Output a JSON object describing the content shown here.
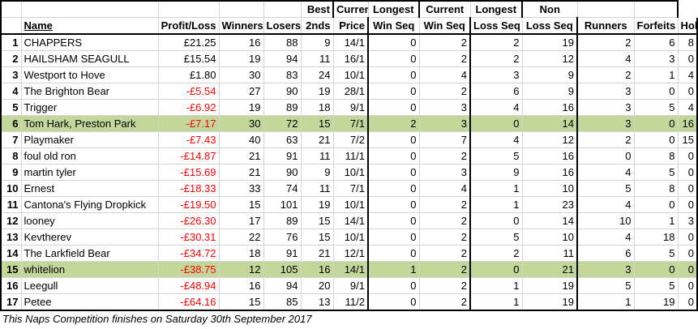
{
  "headers": {
    "line1": {
      "best": "Best",
      "cur_win": "Current",
      "long_win": "Longest",
      "cur_loss": "Current",
      "long_loss": "Longest",
      "non": "Non"
    },
    "line2": {
      "name": "Name",
      "profit": "Profit/Loss",
      "winners": "Winners",
      "losers": "Losers",
      "seconds": "2nds",
      "best": "Price",
      "cur_win": "Win Seq",
      "long_win": "Win Seq",
      "cur_loss": "Loss Seq",
      "long_loss": "Loss Seq",
      "non": "Runners",
      "forfeits": "Forfeits",
      "holiday": "Holiday"
    }
  },
  "rows": [
    {
      "rank": "1",
      "name": "CHAPPERS",
      "profit": "£21.25",
      "winners": "16",
      "losers": "88",
      "seconds": "9",
      "best": "14/1",
      "cur_win": "0",
      "long_win": "2",
      "cur_loss": "2",
      "long_loss": "19",
      "non": "2",
      "forfeits": "6",
      "holiday": "8"
    },
    {
      "rank": "2",
      "name": "HAILSHAM SEAGULL",
      "profit": "£15.54",
      "winners": "19",
      "losers": "94",
      "seconds": "11",
      "best": "16/1",
      "cur_win": "0",
      "long_win": "2",
      "cur_loss": "2",
      "long_loss": "12",
      "non": "4",
      "forfeits": "3",
      "holiday": "0"
    },
    {
      "rank": "3",
      "name": "Westport to Hove",
      "profit": "£1.80",
      "winners": "30",
      "losers": "83",
      "seconds": "24",
      "best": "10/1",
      "cur_win": "0",
      "long_win": "4",
      "cur_loss": "3",
      "long_loss": "9",
      "non": "2",
      "forfeits": "1",
      "holiday": "4"
    },
    {
      "rank": "4",
      "name": "The Brighton Bear",
      "profit": "-£5.54",
      "winners": "27",
      "losers": "90",
      "seconds": "19",
      "best": "28/1",
      "cur_win": "0",
      "long_win": "2",
      "cur_loss": "6",
      "long_loss": "9",
      "non": "3",
      "forfeits": "0",
      "holiday": "0"
    },
    {
      "rank": "5",
      "name": "Trigger",
      "profit": "-£6.92",
      "winners": "19",
      "losers": "89",
      "seconds": "18",
      "best": "9/1",
      "cur_win": "0",
      "long_win": "3",
      "cur_loss": "4",
      "long_loss": "16",
      "non": "3",
      "forfeits": "5",
      "holiday": "4"
    },
    {
      "rank": "6",
      "name": "Tom Hark, Preston Park",
      "profit": "-£7.17",
      "winners": "30",
      "losers": "72",
      "seconds": "15",
      "best": "7/1",
      "cur_win": "2",
      "long_win": "3",
      "cur_loss": "0",
      "long_loss": "14",
      "non": "3",
      "forfeits": "0",
      "holiday": "16",
      "hl": true
    },
    {
      "rank": "7",
      "name": "Playmaker",
      "profit": "-£7.43",
      "winners": "40",
      "losers": "63",
      "seconds": "21",
      "best": "7/2",
      "cur_win": "0",
      "long_win": "7",
      "cur_loss": "4",
      "long_loss": "12",
      "non": "2",
      "forfeits": "0",
      "holiday": "15"
    },
    {
      "rank": "8",
      "name": "foul old ron",
      "profit": "-£14.87",
      "winners": "21",
      "losers": "91",
      "seconds": "11",
      "best": "11/1",
      "cur_win": "0",
      "long_win": "2",
      "cur_loss": "5",
      "long_loss": "16",
      "non": "0",
      "forfeits": "8",
      "holiday": "0"
    },
    {
      "rank": "9",
      "name": "martin tyler",
      "profit": "-£15.69",
      "winners": "21",
      "losers": "90",
      "seconds": "9",
      "best": "10/1",
      "cur_win": "0",
      "long_win": "3",
      "cur_loss": "9",
      "long_loss": "16",
      "non": "4",
      "forfeits": "5",
      "holiday": "0"
    },
    {
      "rank": "10",
      "name": "Ernest",
      "profit": "-£18.33",
      "winners": "33",
      "losers": "74",
      "seconds": "11",
      "best": "7/1",
      "cur_win": "0",
      "long_win": "4",
      "cur_loss": "1",
      "long_loss": "10",
      "non": "5",
      "forfeits": "8",
      "holiday": "0"
    },
    {
      "rank": "11",
      "name": "Cantona's Flying Dropkick",
      "profit": "-£19.50",
      "winners": "15",
      "losers": "101",
      "seconds": "19",
      "best": "10/1",
      "cur_win": "0",
      "long_win": "2",
      "cur_loss": "1",
      "long_loss": "23",
      "non": "4",
      "forfeits": "0",
      "holiday": "0"
    },
    {
      "rank": "12",
      "name": "looney",
      "profit": "-£26.30",
      "winners": "17",
      "losers": "89",
      "seconds": "15",
      "best": "14/1",
      "cur_win": "0",
      "long_win": "2",
      "cur_loss": "0",
      "long_loss": "14",
      "non": "10",
      "forfeits": "1",
      "holiday": "3"
    },
    {
      "rank": "13",
      "name": "Kevtherev",
      "profit": "-£30.31",
      "winners": "22",
      "losers": "76",
      "seconds": "15",
      "best": "10/1",
      "cur_win": "0",
      "long_win": "2",
      "cur_loss": "5",
      "long_loss": "10",
      "non": "4",
      "forfeits": "18",
      "holiday": "0"
    },
    {
      "rank": "14",
      "name": "The Larkfield Bear",
      "profit": "-£34.72",
      "winners": "18",
      "losers": "91",
      "seconds": "21",
      "best": "12/1",
      "cur_win": "0",
      "long_win": "2",
      "cur_loss": "2",
      "long_loss": "11",
      "non": "6",
      "forfeits": "5",
      "holiday": "0"
    },
    {
      "rank": "15",
      "name": "whitelion",
      "profit": "-£38.75",
      "winners": "12",
      "losers": "105",
      "seconds": "16",
      "best": "14/1",
      "cur_win": "1",
      "long_win": "2",
      "cur_loss": "0",
      "long_loss": "21",
      "non": "3",
      "forfeits": "0",
      "holiday": "0",
      "hl": true
    },
    {
      "rank": "16",
      "name": "Leegull",
      "profit": "-£48.94",
      "winners": "16",
      "losers": "94",
      "seconds": "20",
      "best": "9/1",
      "cur_win": "0",
      "long_win": "2",
      "cur_loss": "1",
      "long_loss": "19",
      "non": "5",
      "forfeits": "5",
      "holiday": "0"
    },
    {
      "rank": "17",
      "name": "Petee",
      "profit": "-£64.16",
      "winners": "15",
      "losers": "85",
      "seconds": "13",
      "best": "11/2",
      "cur_win": "0",
      "long_win": "2",
      "cur_loss": "1",
      "long_loss": "19",
      "non": "1",
      "forfeits": "19",
      "holiday": "0"
    }
  ],
  "footer_note": "This Naps Competition finishes on Saturday 30th September 2017",
  "colors": {
    "highlight": "#c4d79b",
    "negative": "#ff0000",
    "gridline": "#d4d4d4"
  }
}
